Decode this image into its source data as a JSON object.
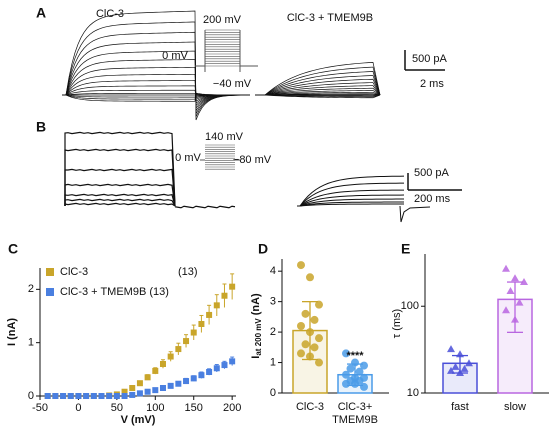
{
  "traces": {
    "A": {
      "label": "A",
      "left_title": "ClC-3",
      "step_top": "200 mV",
      "step_zero": "0 mV",
      "step_bottom": "−40 mV",
      "right_title": "ClC-3 + TMEM9B",
      "scale_current": "500 pA",
      "scale_time": "2 ms"
    },
    "B": {
      "label": "B",
      "step_top": "140 mV",
      "step_zero": "0 mV",
      "step_bottom": "−80 mV",
      "scale_current": "500 pA",
      "scale_time": "200 ms"
    }
  },
  "chart_data": [
    {
      "type": "scatter",
      "panel": "C",
      "xlabel": "V (mV)",
      "ylabel": "I (nA)",
      "x": [
        -40,
        -30,
        -20,
        -10,
        0,
        10,
        20,
        30,
        40,
        50,
        60,
        70,
        80,
        90,
        100,
        110,
        120,
        130,
        140,
        150,
        160,
        170,
        180,
        190,
        200
      ],
      "xlim": [
        -50,
        205
      ],
      "xticks": [
        -50,
        0,
        50,
        100,
        150,
        200
      ],
      "ylim": [
        0,
        2.4
      ],
      "yticks": [
        0,
        1,
        2
      ],
      "series": [
        {
          "name": "ClC-3",
          "n_label": "(13)",
          "color": "#c9a52a",
          "values": [
            0,
            0,
            0,
            0,
            0,
            0,
            0,
            0,
            0.01,
            0.03,
            0.08,
            0.15,
            0.24,
            0.35,
            0.47,
            0.6,
            0.74,
            0.88,
            1.03,
            1.19,
            1.35,
            1.52,
            1.7,
            1.88,
            2.05
          ],
          "errors": [
            0.01,
            0.01,
            0.01,
            0.01,
            0.01,
            0.01,
            0.01,
            0.01,
            0.01,
            0.01,
            0.02,
            0.03,
            0.04,
            0.05,
            0.06,
            0.08,
            0.09,
            0.11,
            0.12,
            0.14,
            0.16,
            0.18,
            0.2,
            0.22,
            0.24
          ]
        },
        {
          "name": "ClC-3 + TMEM9B (13)",
          "color": "#4a7fe0",
          "values": [
            0,
            0,
            0,
            0,
            0,
            0,
            0,
            0,
            0,
            0,
            0,
            0.02,
            0.05,
            0.08,
            0.11,
            0.15,
            0.19,
            0.23,
            0.28,
            0.33,
            0.39,
            0.45,
            0.52,
            0.58,
            0.65
          ],
          "errors": [
            0.01,
            0.01,
            0.01,
            0.01,
            0.01,
            0.01,
            0.01,
            0.01,
            0.01,
            0.01,
            0.01,
            0.01,
            0.02,
            0.02,
            0.03,
            0.03,
            0.04,
            0.04,
            0.05,
            0.05,
            0.06,
            0.06,
            0.07,
            0.07,
            0.08
          ]
        }
      ]
    },
    {
      "type": "bar",
      "panel": "D",
      "ylabel": {
        "main": "I",
        "sub": "at 200 mV",
        "unit": "(nA)"
      },
      "categories": [
        "ClC-3",
        "ClC-3+\nTMEM9B"
      ],
      "values": [
        2.05,
        0.6
      ],
      "errors": [
        0.95,
        0.35
      ],
      "colors": [
        "#c9a52a",
        "#4a9be8"
      ],
      "points": [
        [
          4.2,
          3.8,
          2.9,
          2.6,
          2.4,
          2.2,
          2.0,
          1.8,
          1.6,
          1.5,
          1.3,
          1.2,
          1.0
        ],
        [
          1.3,
          1.0,
          0.9,
          0.8,
          0.7,
          0.6,
          0.5,
          0.5,
          0.4,
          0.4,
          0.3,
          0.3,
          0.2
        ]
      ],
      "annotation": "****",
      "ylim": [
        0,
        4.4
      ],
      "yticks": [
        0,
        1,
        2,
        3,
        4
      ]
    },
    {
      "type": "bar",
      "panel": "E",
      "ylabel": "τ (ms)",
      "log_scale": true,
      "categories": [
        "fast",
        "slow"
      ],
      "values": [
        22,
        120
      ],
      "errors": [
        5,
        70
      ],
      "colors": [
        "#4a4fd8",
        "#b866e0"
      ],
      "points": [
        [
          32,
          28,
          22,
          20,
          19,
          18,
          17
        ],
        [
          270,
          210,
          190,
          150,
          110,
          90,
          70
        ]
      ],
      "ylim": [
        10,
        400
      ],
      "yticks": [
        10,
        100
      ]
    }
  ]
}
